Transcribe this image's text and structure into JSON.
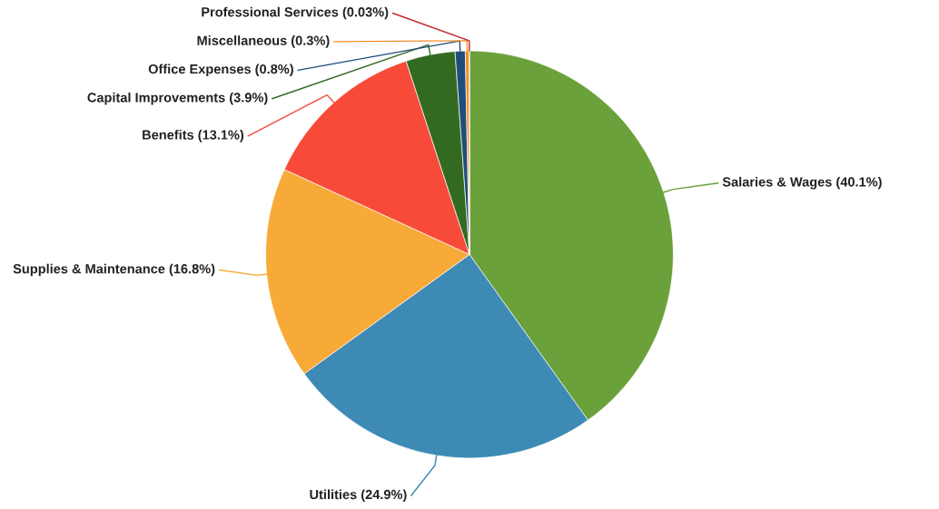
{
  "chart_data": {
    "type": "pie",
    "categories": [
      "Salaries & Wages (40.1%)",
      "Utilities (24.9%)",
      "Supplies & Maintenance (16.8%)",
      "Benefits (13.1%)",
      "Capital Improvements (3.9%)",
      "Office Expenses (0.8%)",
      "Miscellaneous (0.3%)",
      "Professional Services (0.03%)"
    ],
    "values": [
      40.1,
      24.9,
      16.8,
      13.1,
      3.9,
      0.8,
      0.3,
      0.03
    ],
    "colors": [
      "#6aa13a",
      "#3d8ab5",
      "#f7aa37",
      "#f84a38",
      "#336a21",
      "#1f4e7a",
      "#f28e2b",
      "#c0282b"
    ]
  }
}
